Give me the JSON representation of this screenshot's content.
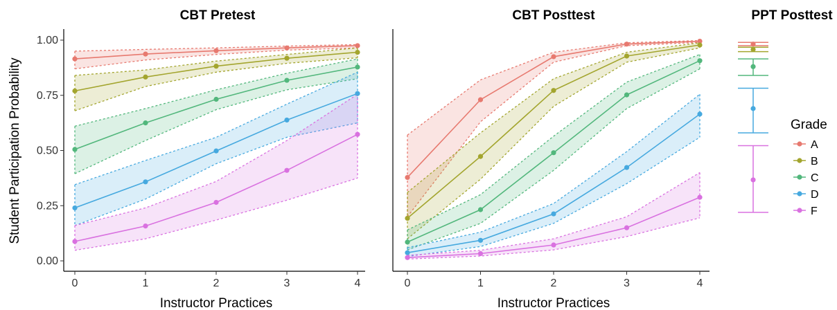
{
  "chart_data": [
    {
      "type": "line",
      "title": "CBT Pretest",
      "xlabel": "Instructor Practices",
      "ylabel": "Student Participation Probability",
      "x": [
        0,
        1,
        2,
        3,
        4
      ],
      "xlim": [
        -0.2,
        4.2
      ],
      "ylim": [
        0,
        1
      ],
      "yticks": [
        "0.00",
        "0.25",
        "0.50",
        "0.75",
        "1.00"
      ],
      "xticks": [
        "0",
        "1",
        "2",
        "3",
        "4"
      ],
      "ribbons": "dashed confidence bands",
      "series": [
        {
          "name": "A",
          "values": [
            0.915,
            0.937,
            0.952,
            0.965,
            0.975
          ],
          "lower": [
            0.87,
            0.91,
            0.935,
            0.955,
            0.965
          ],
          "upper": [
            0.95,
            0.958,
            0.965,
            0.973,
            0.98
          ]
        },
        {
          "name": "B",
          "values": [
            0.77,
            0.833,
            0.882,
            0.918,
            0.945
          ],
          "lower": [
            0.68,
            0.79,
            0.855,
            0.895,
            0.92
          ],
          "upper": [
            0.84,
            0.865,
            0.905,
            0.935,
            0.965
          ]
        },
        {
          "name": "C",
          "values": [
            0.505,
            0.625,
            0.732,
            0.818,
            0.878
          ],
          "lower": [
            0.395,
            0.545,
            0.685,
            0.775,
            0.825
          ],
          "upper": [
            0.61,
            0.69,
            0.775,
            0.85,
            0.915
          ]
        },
        {
          "name": "D",
          "values": [
            0.24,
            0.358,
            0.498,
            0.638,
            0.758
          ],
          "lower": [
            0.16,
            0.28,
            0.44,
            0.56,
            0.625
          ],
          "upper": [
            0.345,
            0.455,
            0.56,
            0.71,
            0.855
          ]
        },
        {
          "name": "F",
          "values": [
            0.088,
            0.158,
            0.265,
            0.41,
            0.573
          ],
          "lower": [
            0.048,
            0.1,
            0.185,
            0.275,
            0.375
          ],
          "upper": [
            0.16,
            0.24,
            0.36,
            0.545,
            0.755
          ]
        }
      ]
    },
    {
      "type": "line",
      "title": "CBT Posttest",
      "xlabel": "Instructor Practices",
      "ylabel": "",
      "x": [
        0,
        1,
        2,
        3,
        4
      ],
      "xlim": [
        -0.2,
        4.2
      ],
      "ylim": [
        0,
        1
      ],
      "xticks": [
        "0",
        "1",
        "2",
        "3",
        "4"
      ],
      "ribbons": "dashed confidence bands",
      "series": [
        {
          "name": "A",
          "values": [
            0.378,
            0.73,
            0.925,
            0.982,
            0.995
          ],
          "lower": [
            0.2,
            0.63,
            0.9,
            0.975,
            0.99
          ],
          "upper": [
            0.57,
            0.82,
            0.945,
            0.988,
            0.998
          ]
        },
        {
          "name": "B",
          "values": [
            0.193,
            0.473,
            0.772,
            0.928,
            0.978
          ],
          "lower": [
            0.1,
            0.37,
            0.7,
            0.9,
            0.965
          ],
          "upper": [
            0.31,
            0.58,
            0.825,
            0.945,
            0.988
          ]
        },
        {
          "name": "C",
          "values": [
            0.085,
            0.232,
            0.49,
            0.752,
            0.907
          ],
          "lower": [
            0.05,
            0.17,
            0.41,
            0.69,
            0.87
          ],
          "upper": [
            0.14,
            0.3,
            0.565,
            0.81,
            0.935
          ]
        },
        {
          "name": "D",
          "values": [
            0.037,
            0.093,
            0.213,
            0.423,
            0.665
          ],
          "lower": [
            0.02,
            0.065,
            0.17,
            0.35,
            0.56
          ],
          "upper": [
            0.06,
            0.13,
            0.26,
            0.495,
            0.755
          ]
        },
        {
          "name": "F",
          "values": [
            0.015,
            0.033,
            0.072,
            0.15,
            0.288
          ],
          "lower": [
            0.008,
            0.022,
            0.05,
            0.11,
            0.195
          ],
          "upper": [
            0.025,
            0.048,
            0.1,
            0.2,
            0.4
          ]
        }
      ]
    },
    {
      "type": "scatter",
      "title": "PPT Posttest",
      "ylim": [
        0,
        1
      ],
      "errorbars": true,
      "series": [
        {
          "name": "A",
          "value": 0.982,
          "lower": 0.975,
          "upper": 0.99
        },
        {
          "name": "B",
          "value": 0.958,
          "lower": 0.948,
          "upper": 0.968
        },
        {
          "name": "C",
          "value": 0.88,
          "lower": 0.84,
          "upper": 0.915
        },
        {
          "name": "D",
          "value": 0.69,
          "lower": 0.58,
          "upper": 0.782
        },
        {
          "name": "F",
          "value": 0.367,
          "lower": 0.22,
          "upper": 0.522
        }
      ]
    }
  ],
  "legend": {
    "title": "Grade",
    "position": "right",
    "items": [
      {
        "label": "A",
        "color": "#E7796F"
      },
      {
        "label": "B",
        "color": "#A3A52E"
      },
      {
        "label": "C",
        "color": "#52B77C"
      },
      {
        "label": "D",
        "color": "#46A9DF"
      },
      {
        "label": "F",
        "color": "#D971E0"
      }
    ]
  }
}
